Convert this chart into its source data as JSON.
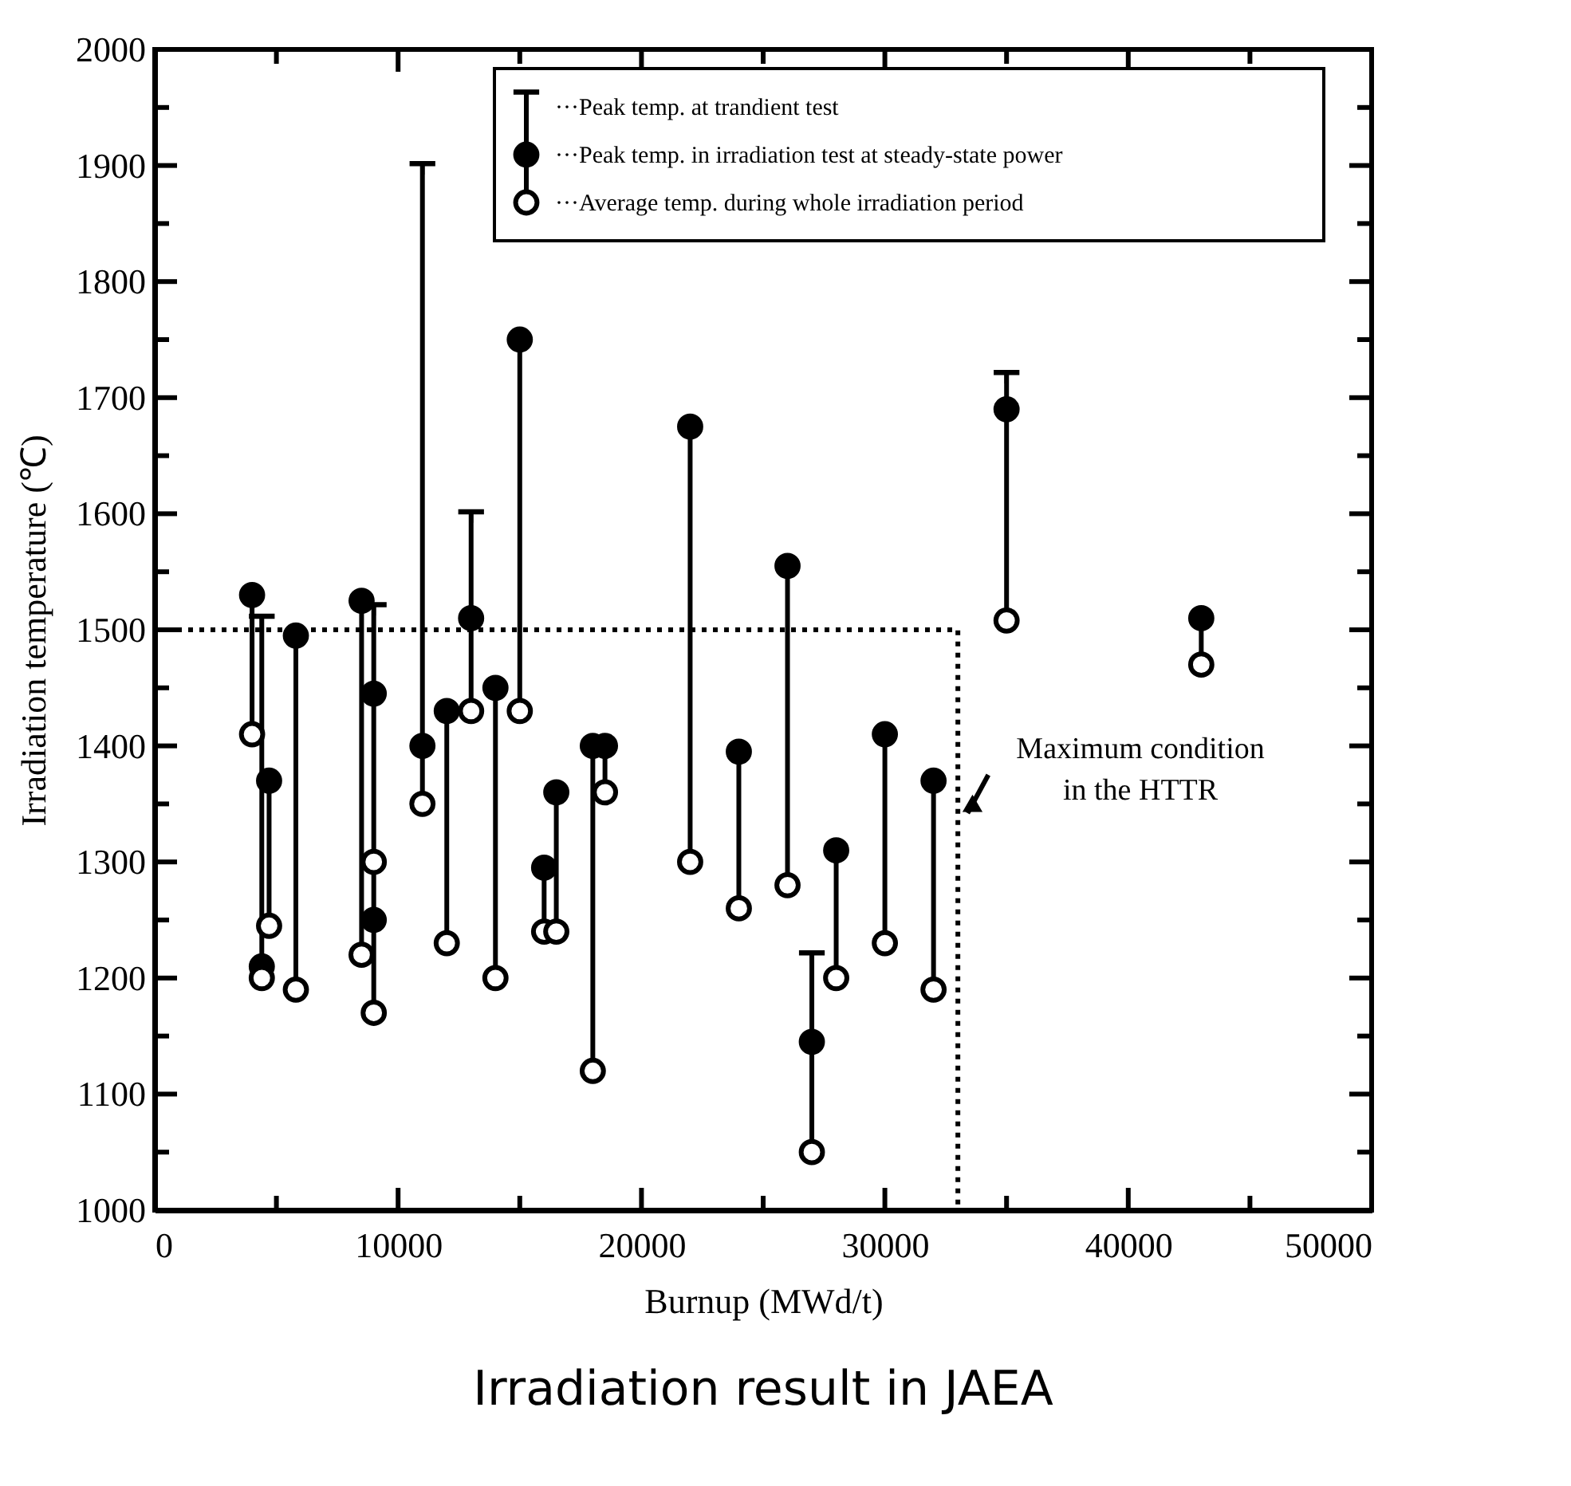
{
  "chart_data": {
    "type": "scatter",
    "title": "Irradiation result in JAEA",
    "xlabel": "Burnup (MWd/t)",
    "ylabel": "Irradiation temperature (℃)",
    "xlim": [
      0,
      50000
    ],
    "ylim": [
      1000,
      2000
    ],
    "xticks": [
      0,
      {
        "value": 5000,
        "label": null
      },
      10000,
      {
        "value": 15000,
        "label": null
      },
      20000,
      {
        "value": 25000,
        "label": null
      },
      30000,
      {
        "value": 35000,
        "label": null
      },
      40000,
      {
        "value": 45000,
        "label": null
      },
      50000
    ],
    "yticks": [
      1000,
      {
        "value": 1050,
        "label": null
      },
      1100,
      {
        "value": 1150,
        "label": null
      },
      1200,
      {
        "value": 1250,
        "label": null
      },
      1300,
      {
        "value": 1350,
        "label": null
      },
      1400,
      {
        "value": 1450,
        "label": null
      },
      1500,
      {
        "value": 1550,
        "label": null
      },
      1600,
      {
        "value": 1650,
        "label": null
      },
      1700,
      {
        "value": 1750,
        "label": null
      },
      1800,
      {
        "value": 1850,
        "label": null
      },
      1900,
      {
        "value": 1950,
        "label": null
      },
      2000
    ],
    "grid": false,
    "legend": "top right",
    "x": [
      4000,
      4400,
      4700,
      5800,
      8500,
      9000,
      9000,
      11000,
      12000,
      13000,
      14000,
      15000,
      16000,
      16500,
      18000,
      18500,
      22000,
      24000,
      26000,
      27000,
      28000,
      30000,
      32000,
      35000,
      43000
    ],
    "series": [
      {
        "type": "line",
        "color": "#000000",
        "line_style": "solid",
        "x": [
          4000,
          4000
        ],
        "values": [
          1410,
          1530
        ]
      },
      {
        "type": "line",
        "color": "#000000",
        "line_style": "solid",
        "x": [
          4400,
          4400
        ],
        "values": [
          1200,
          1510
        ]
      },
      {
        "type": "line",
        "color": "#000000",
        "line_style": "solid",
        "x": [
          4700,
          4700
        ],
        "values": [
          1245,
          1370
        ]
      },
      {
        "type": "line",
        "color": "#000000",
        "line_style": "solid",
        "x": [
          5800,
          5800
        ],
        "values": [
          1190,
          1495
        ]
      },
      {
        "type": "line",
        "color": "#000000",
        "line_style": "solid",
        "x": [
          8500,
          8500
        ],
        "values": [
          1220,
          1525
        ]
      },
      {
        "type": "line",
        "color": "#000000",
        "line_style": "solid",
        "x": [
          9000,
          9000
        ],
        "values": [
          1170,
          1520
        ]
      },
      {
        "type": "line",
        "color": "#000000",
        "line_style": "solid",
        "x": [
          11000,
          11000
        ],
        "values": [
          1350,
          1900
        ]
      },
      {
        "type": "line",
        "color": "#000000",
        "line_style": "solid",
        "x": [
          12000,
          12000
        ],
        "values": [
          1230,
          1430
        ]
      },
      {
        "type": "line",
        "color": "#000000",
        "line_style": "solid",
        "x": [
          13000,
          13000
        ],
        "values": [
          1430,
          1600
        ]
      },
      {
        "type": "line",
        "color": "#000000",
        "line_style": "solid",
        "x": [
          14000,
          14000
        ],
        "values": [
          1200,
          1450
        ]
      },
      {
        "type": "line",
        "color": "#000000",
        "line_style": "solid",
        "x": [
          15000,
          15000
        ],
        "values": [
          1430,
          1750
        ]
      },
      {
        "type": "line",
        "color": "#000000",
        "line_style": "solid",
        "x": [
          16000,
          16000
        ],
        "values": [
          1240,
          1295
        ]
      },
      {
        "type": "line",
        "color": "#000000",
        "line_style": "solid",
        "x": [
          16500,
          16500
        ],
        "values": [
          1240,
          1360
        ]
      },
      {
        "type": "line",
        "color": "#000000",
        "line_style": "solid",
        "x": [
          18000,
          18000
        ],
        "values": [
          1120,
          1400
        ]
      },
      {
        "type": "line",
        "color": "#000000",
        "line_style": "solid",
        "x": [
          18500,
          18500
        ],
        "values": [
          1360,
          1400
        ]
      },
      {
        "type": "line",
        "color": "#000000",
        "line_style": "solid",
        "x": [
          22000,
          22000
        ],
        "values": [
          1300,
          1675
        ]
      },
      {
        "type": "line",
        "color": "#000000",
        "line_style": "solid",
        "x": [
          24000,
          24000
        ],
        "values": [
          1260,
          1395
        ]
      },
      {
        "type": "line",
        "color": "#000000",
        "line_style": "solid",
        "x": [
          26000,
          26000
        ],
        "values": [
          1280,
          1555
        ]
      },
      {
        "type": "line",
        "color": "#000000",
        "line_style": "solid",
        "x": [
          27000,
          27000
        ],
        "values": [
          1050,
          1220
        ]
      },
      {
        "type": "line",
        "color": "#000000",
        "line_style": "solid",
        "x": [
          28000,
          28000
        ],
        "values": [
          1200,
          1310
        ]
      },
      {
        "type": "line",
        "color": "#000000",
        "line_style": "solid",
        "x": [
          30000,
          30000
        ],
        "values": [
          1230,
          1410
        ]
      },
      {
        "type": "line",
        "color": "#000000",
        "line_style": "solid",
        "x": [
          32000,
          32000
        ],
        "values": [
          1190,
          1370
        ]
      },
      {
        "type": "line",
        "color": "#000000",
        "line_style": "solid",
        "x": [
          35000,
          35000
        ],
        "values": [
          1508,
          1720
        ]
      },
      {
        "type": "line",
        "color": "#000000",
        "line_style": "solid",
        "x": [
          43000,
          43000
        ],
        "values": [
          1470,
          1510
        ]
      },
      {
        "type": "line",
        "line_style": "dotted",
        "color": "#000000",
        "x": [
          0,
          33000,
          33000
        ],
        "values": [
          1500,
          1500,
          1000
        ]
      },
      {
        "name": "···Peak temp. at trandient test",
        "type": "scatter",
        "color": "#000000",
        "values": [
          null,
          1510,
          null,
          null,
          null,
          1520,
          null,
          1900,
          null,
          1600,
          null,
          null,
          null,
          null,
          null,
          null,
          null,
          null,
          null,
          1220,
          null,
          null,
          null,
          1720,
          null
        ]
      },
      {
        "name": "···Peak temp. in irradiation test at steady-state power",
        "type": "scatter",
        "marker": "circle",
        "color": "#000000",
        "values": [
          1530,
          1210,
          1370,
          1495,
          1525,
          1445,
          1250,
          1400,
          1430,
          1510,
          1450,
          1750,
          1295,
          1360,
          1400,
          1400,
          1675,
          1395,
          1555,
          1145,
          1310,
          1410,
          1370,
          1690,
          1510
        ]
      },
      {
        "name": "···Average temp. during whole irradiation period",
        "type": "scatter",
        "marker": "circle",
        "color": "#ffffff",
        "values": [
          1410,
          1200,
          1245,
          1190,
          1220,
          1300,
          1170,
          1350,
          1230,
          1430,
          1200,
          1430,
          1240,
          1240,
          1120,
          1360,
          1300,
          1260,
          1280,
          1050,
          1200,
          1230,
          1190,
          1508,
          1470
        ]
      }
    ],
    "annotations": [
      {
        "text": "Maximum condition\nin the HTTR",
        "x": 33000,
        "y": 1330
      }
    ]
  }
}
